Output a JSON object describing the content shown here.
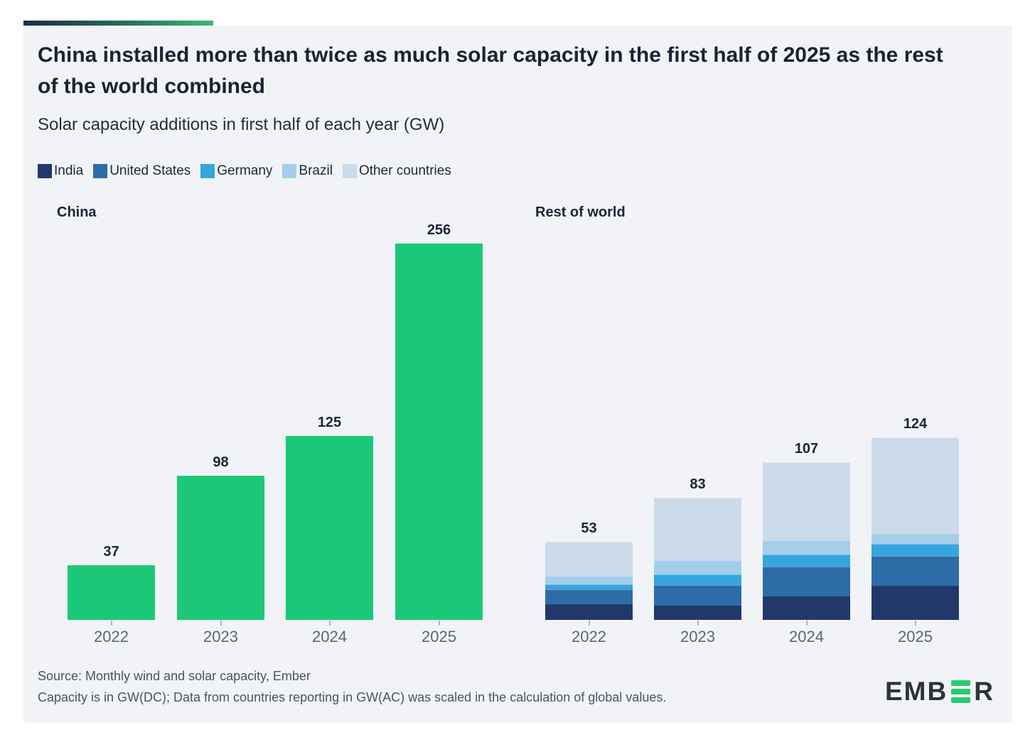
{
  "header": {
    "title": "China installed more than twice as much solar capacity in the first half of 2025 as the rest of the world combined",
    "subtitle": "Solar capacity additions in first half of each year (GW)"
  },
  "legend": {
    "items": [
      {
        "label": "India",
        "color": "#22386b"
      },
      {
        "label": "United States",
        "color": "#2d6ca7"
      },
      {
        "label": "Germany",
        "color": "#36a5e0"
      },
      {
        "label": "Brazil",
        "color": "#a4cee9"
      },
      {
        "label": "Other countries",
        "color": "#ccdbe9"
      }
    ]
  },
  "chart_data": [
    {
      "type": "bar",
      "title": "China",
      "categories": [
        "2022",
        "2023",
        "2024",
        "2025"
      ],
      "values": [
        37,
        98,
        125,
        256
      ],
      "bar_color": "#1cc878",
      "unit": "GW",
      "data_labels": true,
      "grid": false
    },
    {
      "type": "stacked-bar",
      "title": "Rest of world",
      "categories": [
        "2022",
        "2023",
        "2024",
        "2025"
      ],
      "totals": [
        53,
        83,
        107,
        124
      ],
      "series": [
        {
          "name": "India",
          "color": "#22386b",
          "values": [
            10.4,
            9.8,
            15.9,
            23.3
          ]
        },
        {
          "name": "United States",
          "color": "#2d6ca7",
          "values": [
            10.2,
            13.9,
            20.3,
            20.4
          ]
        },
        {
          "name": "Germany",
          "color": "#36a5e0",
          "values": [
            3.6,
            7.2,
            8.2,
            8.1
          ]
        },
        {
          "name": "Brazil",
          "color": "#a4cee9",
          "values": [
            5.7,
            9.9,
            9.8,
            7.0
          ]
        },
        {
          "name": "Other countries",
          "color": "#ccdbe9",
          "values": [
            23.1,
            42.2,
            52.8,
            65.2
          ]
        }
      ],
      "unit": "GW",
      "data_labels": true,
      "grid": false
    }
  ],
  "footer": {
    "source_line1": "Source: Monthly wind and solar capacity, Ember",
    "source_line2": "Capacity is in GW(DC); Data from countries reporting in GW(AC) was scaled in the calculation of global values."
  },
  "logo": {
    "brand": "EMBER",
    "left": "EMB",
    "right": "R",
    "green": "#2bc96e"
  },
  "colors": {
    "card_background": "#f1f3f7",
    "china_green": "#1cc878",
    "accent_gradient_start": "#1c2b4a",
    "accent_gradient_end": "#3cb874",
    "title_text": "#1a2334",
    "axis_text": "#5d6575"
  }
}
